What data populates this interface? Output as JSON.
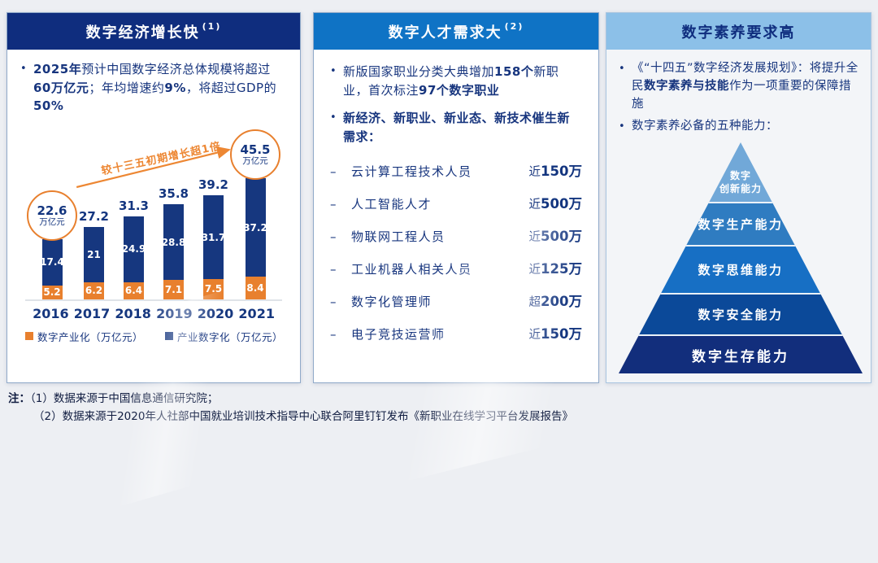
{
  "page": {
    "bg": "#edeff3",
    "note_label": "注：",
    "footnotes": [
      "（1）数据来源于中国信息通信研究院；",
      "（2）数据来源于2020年人社部中国就业培训技术指导中心联合阿里钉钉发布《新职业在线学习平台发展报告》"
    ],
    "markers": {
      "bullet": "•",
      "dash": "–"
    }
  },
  "economy": {
    "title": "数字经济增长快",
    "sup": "(1)",
    "header_bg": "#0f2d7e",
    "bullet": [
      [
        "2025年",
        1
      ],
      [
        "预计中国数字经济总体规模将超过",
        0
      ],
      [
        "60万亿元",
        1
      ],
      [
        "；年均增速约",
        0
      ],
      [
        "9%",
        1
      ],
      [
        "，将超过GDP的",
        0
      ],
      [
        "50%",
        1
      ]
    ]
  },
  "talent": {
    "title": "数字人才需求大",
    "sup": "(2)",
    "header_bg": "#0f73c5",
    "bullet1": [
      [
        "新版国家职业分类大典增加",
        0
      ],
      [
        "158个",
        1
      ],
      [
        "新职业，首次标注",
        0
      ],
      [
        "97个数字职业",
        1
      ]
    ],
    "bullet2": [
      [
        "新经济、新职业、新业态、新技术催生新需求：",
        1
      ]
    ],
    "jobs": [
      {
        "name": "云计算工程技术人员",
        "prefix": "近",
        "num": "150万"
      },
      {
        "name": "人工智能人才",
        "prefix": "近",
        "num": "500万"
      },
      {
        "name": "物联网工程人员",
        "prefix": "近",
        "num": "500万"
      },
      {
        "name": "工业机器人相关人员",
        "prefix": "近",
        "num": "125万"
      },
      {
        "name": "数字化管理师",
        "prefix": "超",
        "num": "200万"
      },
      {
        "name": "电子竞技运营师",
        "prefix": "近",
        "num": "150万"
      }
    ]
  },
  "literacy": {
    "title": "数字素养要求高",
    "header_bg": "#8cc0e8",
    "bullet1": [
      [
        "《“十四五”数字经济发展规划》：将提升全民",
        0
      ],
      [
        "数字素养与技能",
        1
      ],
      [
        "作为一项重要的保障措施",
        0
      ]
    ],
    "bullet2": [
      [
        "数字素养必备的五种能力：",
        0
      ]
    ],
    "pyramid": [
      {
        "label": "数字创新能力",
        "lines": [
          "数字",
          "创新能力"
        ],
        "color": "#71a8d8",
        "h": 73
      },
      {
        "label": "数字生产能力",
        "lines": [
          "数字生产能力"
        ],
        "color": "#2f7cc1",
        "h": 53
      },
      {
        "label": "数字思维能力",
        "lines": [
          "数字思维能力"
        ],
        "color": "#176fc4",
        "h": 59
      },
      {
        "label": "数字安全能力",
        "lines": [
          "数字安全能力"
        ],
        "color": "#0b4999",
        "h": 51
      },
      {
        "label": "数字生存能力",
        "lines": [
          "数字生存能力"
        ],
        "color": "#122e7c",
        "h": 48
      }
    ]
  },
  "chart_data": {
    "type": "bar",
    "stacked": true,
    "title": "",
    "categories": [
      "2016",
      "2017",
      "2018",
      "2019",
      "2020",
      "2021"
    ],
    "series": [
      {
        "name": "数字产业化（万亿元）",
        "color": "#e8802e",
        "values": [
          5.2,
          6.2,
          6.4,
          7.1,
          7.5,
          8.4
        ]
      },
      {
        "name": "产业数字化（万亿元）",
        "color": "#16377f",
        "values": [
          17.4,
          21,
          24.9,
          28.8,
          31.7,
          37.2
        ]
      }
    ],
    "totals": [
      22.6,
      27.2,
      31.3,
      35.8,
      39.2,
      45.5
    ],
    "total_unit": "万亿元",
    "circled_indices": [
      0,
      5
    ],
    "annotation": "较十三五初期增长超1倍",
    "legend_position": "bottom",
    "grid": false,
    "ylim": [
      0,
      50
    ]
  }
}
